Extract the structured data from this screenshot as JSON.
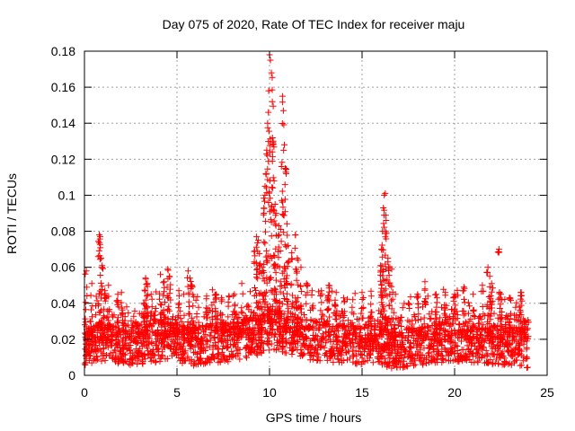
{
  "chart_data": {
    "type": "scatter",
    "title": "Day 075 of 2020, Rate Of TEC Index for receiver maju",
    "xlabel": "GPS time / hours",
    "ylabel": "ROTI / TECUs",
    "xlim": [
      0,
      25
    ],
    "ylim": [
      0,
      0.18
    ],
    "xticks": [
      0,
      5,
      10,
      15,
      20,
      25
    ],
    "xtick_labels": [
      "0",
      "5",
      "10",
      "15",
      "20",
      "25"
    ],
    "yticks": [
      0,
      0.02,
      0.04,
      0.06,
      0.08,
      0.1,
      0.12,
      0.14,
      0.16,
      0.18
    ],
    "ytick_labels": [
      "0",
      "0.02",
      "0.04",
      "0.06",
      "0.08",
      "0.1",
      "0.12",
      "0.14",
      "0.16",
      "0.18"
    ],
    "grid": true,
    "marker": "+",
    "series": [
      {
        "name": "ROTI",
        "color": "#ff0000",
        "x_range": [
          0,
          24
        ],
        "baseline_points": [
          [
            0.0,
            0.016
          ],
          [
            0.5,
            0.018
          ],
          [
            1.0,
            0.019
          ],
          [
            1.5,
            0.018
          ],
          [
            2.0,
            0.017
          ],
          [
            2.5,
            0.016
          ],
          [
            3.0,
            0.017
          ],
          [
            3.5,
            0.018
          ],
          [
            4.0,
            0.018
          ],
          [
            4.5,
            0.019
          ],
          [
            5.0,
            0.018
          ],
          [
            5.5,
            0.017
          ],
          [
            6.0,
            0.016
          ],
          [
            6.5,
            0.017
          ],
          [
            7.0,
            0.018
          ],
          [
            7.5,
            0.018
          ],
          [
            8.0,
            0.019
          ],
          [
            8.5,
            0.02
          ],
          [
            9.0,
            0.021
          ],
          [
            9.5,
            0.023
          ],
          [
            10.0,
            0.025
          ],
          [
            10.5,
            0.024
          ],
          [
            11.0,
            0.023
          ],
          [
            11.5,
            0.021
          ],
          [
            12.0,
            0.02
          ],
          [
            12.5,
            0.019
          ],
          [
            13.0,
            0.019
          ],
          [
            13.5,
            0.018
          ],
          [
            14.0,
            0.018
          ],
          [
            14.5,
            0.017
          ],
          [
            15.0,
            0.017
          ],
          [
            15.5,
            0.017
          ],
          [
            16.0,
            0.016
          ],
          [
            16.5,
            0.015
          ],
          [
            17.0,
            0.014
          ],
          [
            17.5,
            0.015
          ],
          [
            18.0,
            0.016
          ],
          [
            18.5,
            0.017
          ],
          [
            19.0,
            0.018
          ],
          [
            19.5,
            0.018
          ],
          [
            20.0,
            0.019
          ],
          [
            20.5,
            0.018
          ],
          [
            21.0,
            0.018
          ],
          [
            21.5,
            0.018
          ],
          [
            22.0,
            0.017
          ],
          [
            22.5,
            0.017
          ],
          [
            23.0,
            0.016
          ],
          [
            23.5,
            0.016
          ],
          [
            24.0,
            0.015
          ]
        ],
        "peak_points": [
          [
            0.1,
            0.058
          ],
          [
            0.3,
            0.03
          ],
          [
            0.4,
            0.051
          ],
          [
            0.8,
            0.078
          ],
          [
            0.85,
            0.077
          ],
          [
            0.9,
            0.065
          ],
          [
            0.95,
            0.06
          ],
          [
            1.1,
            0.047
          ],
          [
            1.3,
            0.05
          ],
          [
            1.8,
            0.045
          ],
          [
            2.0,
            0.046
          ],
          [
            3.2,
            0.04
          ],
          [
            3.3,
            0.054
          ],
          [
            3.4,
            0.051
          ],
          [
            3.6,
            0.045
          ],
          [
            4.1,
            0.056
          ],
          [
            4.3,
            0.052
          ],
          [
            4.5,
            0.059
          ],
          [
            4.6,
            0.055
          ],
          [
            5.1,
            0.047
          ],
          [
            5.6,
            0.058
          ],
          [
            5.7,
            0.054
          ],
          [
            5.8,
            0.05
          ],
          [
            6.6,
            0.044
          ],
          [
            7.1,
            0.045
          ],
          [
            7.4,
            0.043
          ],
          [
            7.8,
            0.044
          ],
          [
            8.1,
            0.045
          ],
          [
            8.5,
            0.051
          ],
          [
            9.2,
            0.069
          ],
          [
            9.3,
            0.077
          ],
          [
            9.4,
            0.075
          ],
          [
            9.5,
            0.062
          ],
          [
            9.6,
            0.06
          ],
          [
            9.7,
            0.09
          ],
          [
            9.75,
            0.1
          ],
          [
            9.8,
            0.112
          ],
          [
            9.85,
            0.125
          ],
          [
            9.9,
            0.14
          ],
          [
            9.95,
            0.158
          ],
          [
            10.0,
            0.178
          ],
          [
            10.05,
            0.175
          ],
          [
            10.1,
            0.168
          ],
          [
            10.15,
            0.152
          ],
          [
            10.2,
            0.13
          ],
          [
            10.25,
            0.108
          ],
          [
            10.3,
            0.095
          ],
          [
            10.35,
            0.09
          ],
          [
            10.5,
            0.083
          ],
          [
            10.6,
            0.081
          ],
          [
            10.7,
            0.155
          ],
          [
            10.75,
            0.147
          ],
          [
            10.8,
            0.128
          ],
          [
            10.85,
            0.115
          ],
          [
            10.9,
            0.112
          ],
          [
            11.0,
            0.072
          ],
          [
            11.2,
            0.068
          ],
          [
            11.4,
            0.078
          ],
          [
            11.5,
            0.065
          ],
          [
            11.7,
            0.06
          ],
          [
            12.0,
            0.051
          ],
          [
            12.3,
            0.047
          ],
          [
            12.8,
            0.047
          ],
          [
            13.2,
            0.05
          ],
          [
            13.6,
            0.046
          ],
          [
            14.0,
            0.043
          ],
          [
            14.5,
            0.042
          ],
          [
            15.0,
            0.046
          ],
          [
            15.5,
            0.044
          ],
          [
            16.0,
            0.061
          ],
          [
            16.05,
            0.07
          ],
          [
            16.1,
            0.08
          ],
          [
            16.15,
            0.093
          ],
          [
            16.2,
            0.1
          ],
          [
            16.25,
            0.101
          ],
          [
            16.3,
            0.086
          ],
          [
            16.4,
            0.065
          ],
          [
            16.5,
            0.06
          ],
          [
            16.6,
            0.059
          ],
          [
            16.8,
            0.045
          ],
          [
            17.5,
            0.04
          ],
          [
            18.0,
            0.045
          ],
          [
            18.4,
            0.052
          ],
          [
            19.0,
            0.045
          ],
          [
            19.5,
            0.046
          ],
          [
            20.0,
            0.045
          ],
          [
            20.5,
            0.049
          ],
          [
            21.0,
            0.045
          ],
          [
            21.5,
            0.05
          ],
          [
            21.8,
            0.06
          ],
          [
            21.9,
            0.055
          ],
          [
            22.0,
            0.051
          ],
          [
            22.4,
            0.07
          ],
          [
            22.5,
            0.045
          ],
          [
            23.0,
            0.043
          ],
          [
            23.5,
            0.038
          ],
          [
            23.6,
            0.046
          ],
          [
            23.8,
            0.03
          ]
        ]
      }
    ]
  }
}
